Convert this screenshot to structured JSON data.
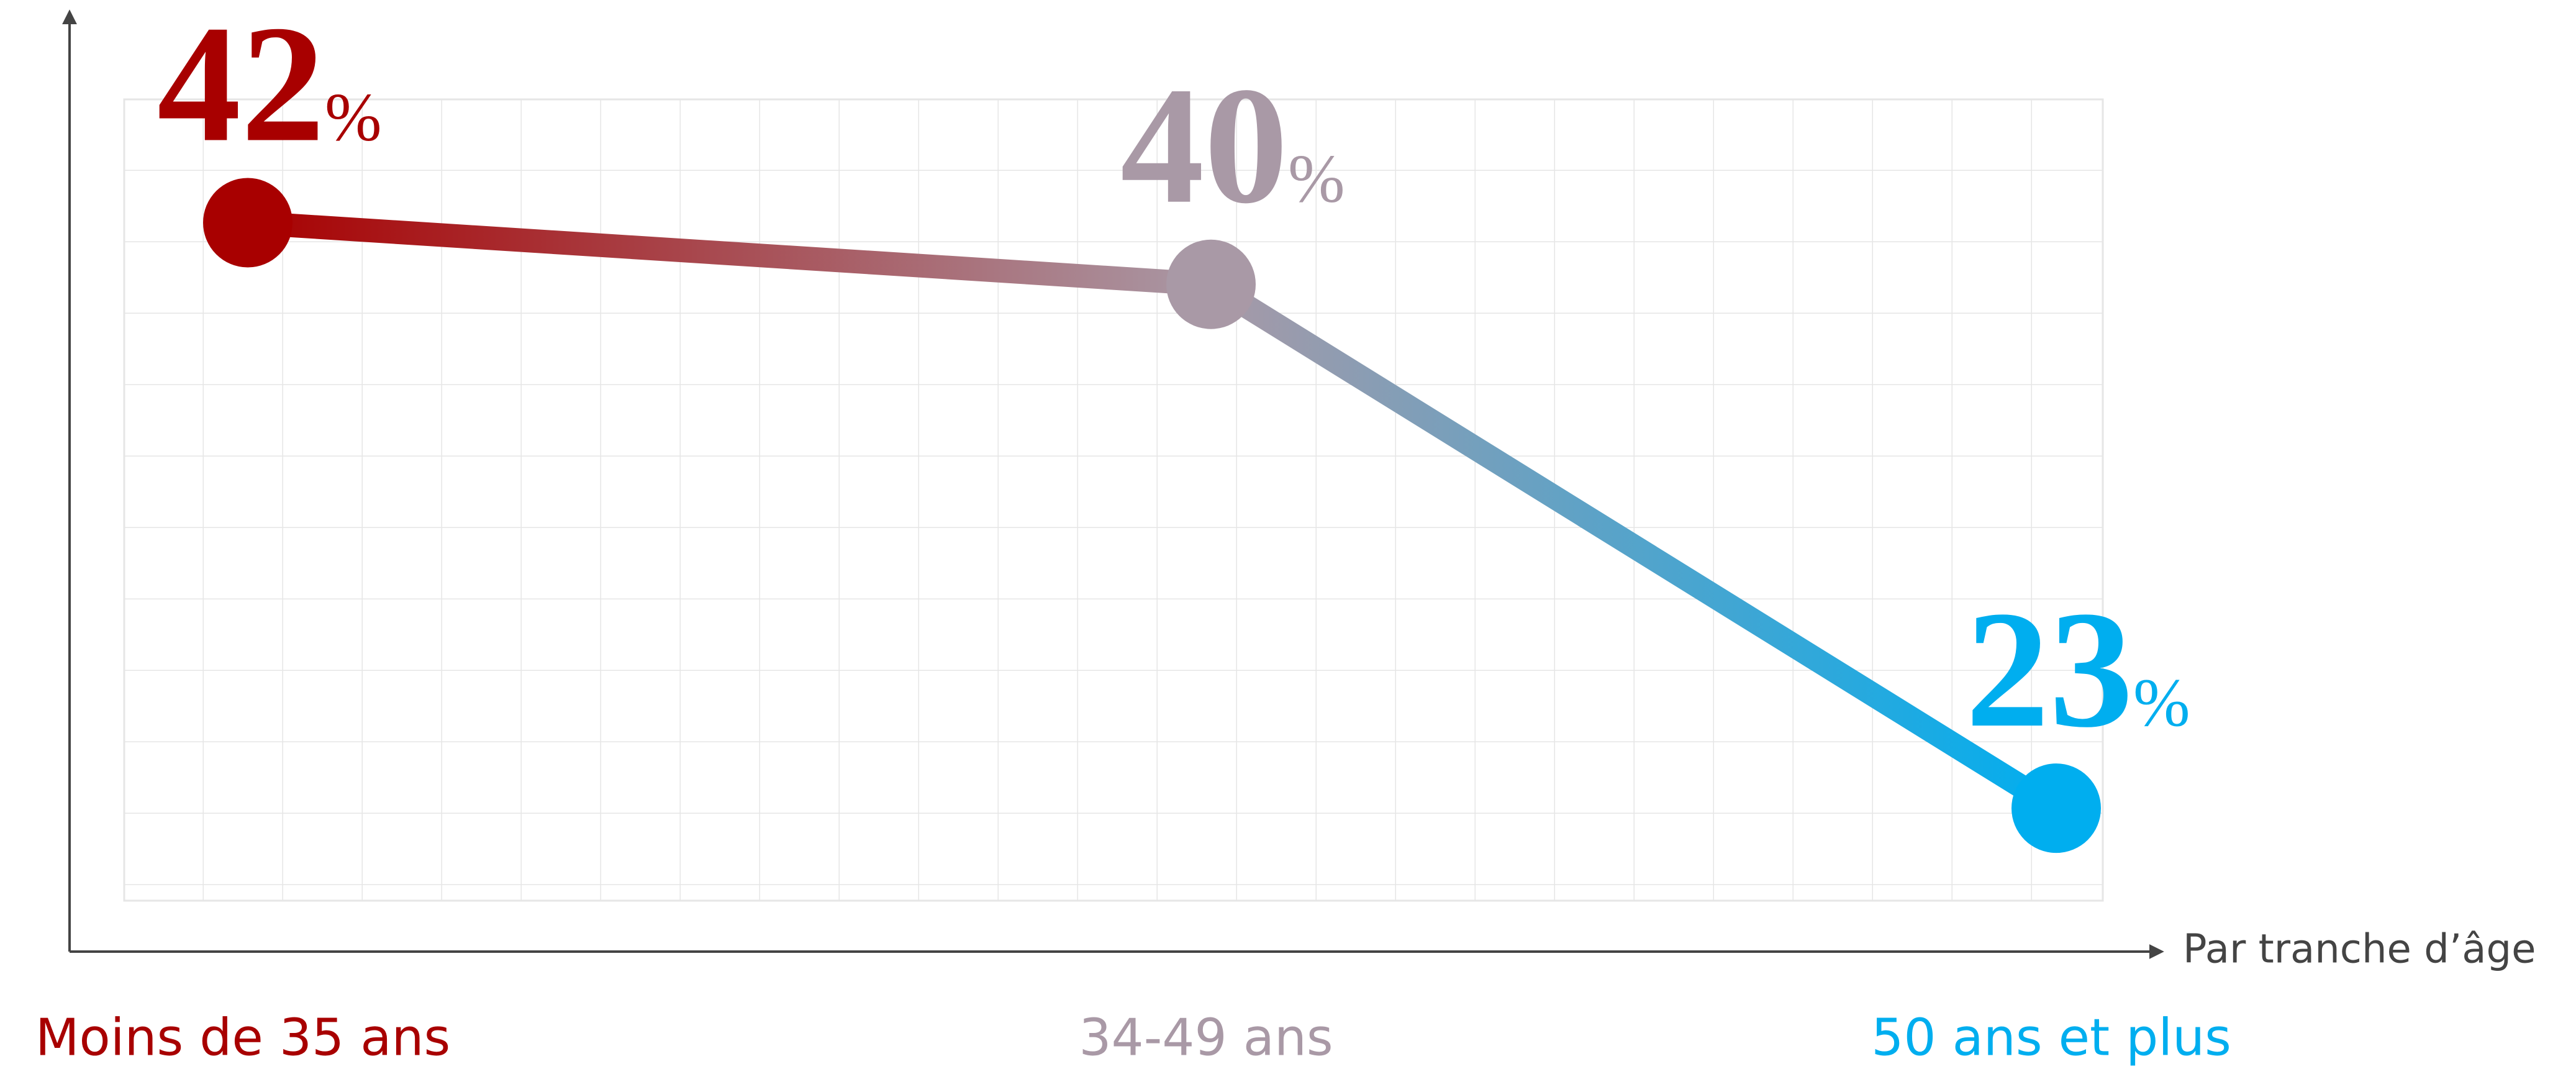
{
  "chart_data": {
    "type": "line",
    "x_label": "Par tranche d’âge",
    "categories": [
      "Moins de 35 ans",
      "34-49 ans",
      "50 ans et plus"
    ],
    "values": [
      42,
      40,
      23
    ],
    "value_labels": [
      "42%",
      "40%",
      "23%"
    ],
    "colors": [
      "#a80000",
      "#a999a6",
      "#00aeef"
    ],
    "ylim": [
      20,
      46
    ]
  }
}
